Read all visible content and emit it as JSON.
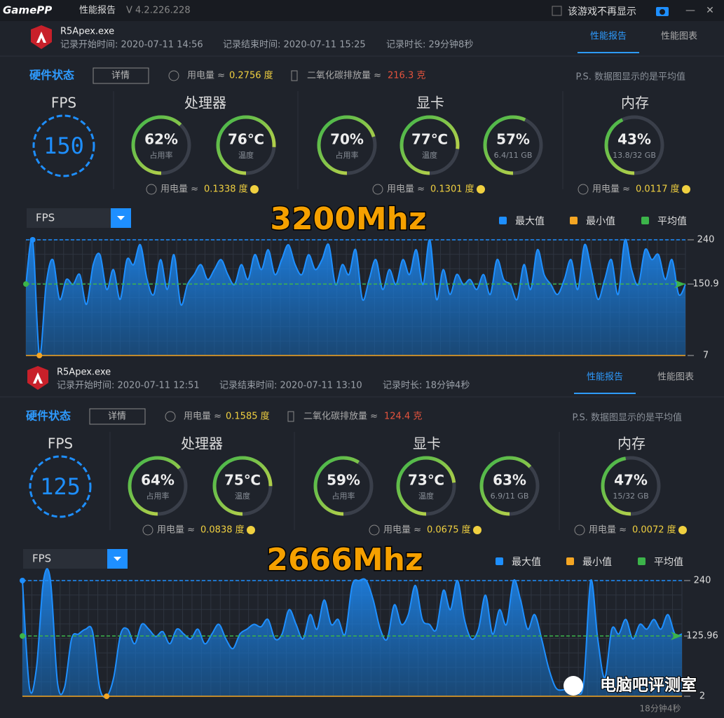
{
  "app": {
    "logo": "GamePP",
    "title": "性能报告",
    "version": "V 4.2.226.228",
    "checkbox": "该游戏不再显示",
    "minimize": "—",
    "close": "✕"
  },
  "panels": [
    {
      "exe": "R5Apex.exe",
      "start": "记录开始时间: 2020-07-11 14:56",
      "end": "记录结束时间: 2020-07-11 15:25",
      "duration": "记录时长: 29分钟8秒",
      "tabs": [
        "性能报告",
        "性能图表"
      ],
      "hw_title": "硬件状态",
      "detail": "详情",
      "power": "用电量 ≈",
      "power_value": "0.2756 度",
      "co2": "二氧化碳排放量 ≈",
      "co2_value": "216.3 克",
      "note": "P.S. 数据图显示的是平均值",
      "fps_label": "FPS",
      "fps": 150,
      "groups": [
        {
          "title": "处理器",
          "gauges": [
            {
              "value": 62,
              "label": "62%",
              "sub": "占用率"
            },
            {
              "value": 76,
              "label": "76℃",
              "sub": "温度"
            }
          ],
          "power": "用电量 ≈",
          "power_value": "0.1338 度"
        },
        {
          "title": "显卡",
          "gauges": [
            {
              "value": 70,
              "label": "70%",
              "sub": "占用率"
            },
            {
              "value": 77,
              "label": "77℃",
              "sub": "温度"
            },
            {
              "value": 57,
              "label": "57%",
              "sub": "6.4/11 GB"
            }
          ],
          "power": "用电量 ≈",
          "power_value": "0.1301 度"
        },
        {
          "title": "内存",
          "gauges": [
            {
              "value": 43,
              "label": "43%",
              "sub": "13.8/32 GB"
            }
          ],
          "power": "用电量 ≈",
          "power_value": "0.0117 度"
        }
      ],
      "chart": {
        "type": "area",
        "dropdown": "FPS",
        "overlay": "3200Mhz",
        "legend": [
          {
            "name": "最大值",
            "color": "#1e8fff"
          },
          {
            "name": "最小值",
            "color": "#f5a623"
          },
          {
            "name": "平均值",
            "color": "#3cb44a"
          }
        ],
        "ylim": [
          7,
          240
        ],
        "yticks": [
          7,
          150.9,
          240
        ],
        "color": "#1e8fff",
        "values": [
          150,
          240,
          7,
          150,
          200,
          120,
          160,
          150,
          170,
          110,
          190,
          210,
          140,
          180,
          120,
          200,
          190,
          230,
          160,
          130,
          200,
          140,
          210,
          110,
          150,
          170,
          190,
          160,
          180,
          200,
          170,
          150,
          190,
          160,
          210,
          180,
          220,
          170,
          200,
          230,
          190,
          170,
          210,
          180,
          200,
          230,
          150,
          190,
          170,
          220,
          120,
          160,
          200,
          140,
          180,
          150,
          200,
          170,
          220,
          150,
          240,
          120,
          180,
          130,
          170,
          150,
          160,
          140,
          170,
          130,
          200,
          160,
          150,
          120,
          190,
          140,
          220,
          170,
          150,
          130,
          160,
          200,
          140,
          230,
          180,
          120,
          160,
          200,
          130,
          240,
          180,
          150,
          220,
          200,
          210,
          160,
          200,
          130,
          150
        ]
      }
    },
    {
      "exe": "R5Apex.exe",
      "start": "记录开始时间: 2020-07-11 12:51",
      "end": "记录结束时间: 2020-07-11 13:10",
      "duration": "记录时长: 18分钟4秒",
      "tabs": [
        "性能报告",
        "性能图表"
      ],
      "hw_title": "硬件状态",
      "detail": "详情",
      "power": "用电量 ≈",
      "power_value": "0.1585 度",
      "co2": "二氧化碳排放量 ≈",
      "co2_value": "124.4 克",
      "note": "P.S. 数据图显示的是平均值",
      "fps_label": "FPS",
      "fps": 125,
      "groups": [
        {
          "title": "处理器",
          "gauges": [
            {
              "value": 64,
              "label": "64%",
              "sub": "占用率"
            },
            {
              "value": 75,
              "label": "75℃",
              "sub": "温度"
            }
          ],
          "power": "用电量 ≈",
          "power_value": "0.0838 度"
        },
        {
          "title": "显卡",
          "gauges": [
            {
              "value": 59,
              "label": "59%",
              "sub": "占用率"
            },
            {
              "value": 73,
              "label": "73℃",
              "sub": "温度"
            },
            {
              "value": 63,
              "label": "63%",
              "sub": "6.9/11 GB"
            }
          ],
          "power": "用电量 ≈",
          "power_value": "0.0675 度"
        },
        {
          "title": "内存",
          "gauges": [
            {
              "value": 47,
              "label": "47%",
              "sub": "15/32 GB"
            }
          ],
          "power": "用电量 ≈",
          "power_value": "0.0072 度"
        }
      ],
      "chart": {
        "type": "area",
        "dropdown": "FPS",
        "overlay": "2666Mhz",
        "legend": [
          {
            "name": "最大值",
            "color": "#1e8fff"
          },
          {
            "name": "最小值",
            "color": "#f5a623"
          },
          {
            "name": "平均值",
            "color": "#3cb44a"
          }
        ],
        "ylim": [
          2,
          240
        ],
        "yticks": [
          2,
          125.96,
          240
        ],
        "color": "#1e8fff",
        "values": [
          240,
          20,
          60,
          240,
          240,
          30,
          20,
          120,
          130,
          140,
          135,
          20,
          2,
          40,
          130,
          140,
          110,
          150,
          140,
          125,
          135,
          110,
          140,
          130,
          120,
          140,
          110,
          130,
          150,
          120,
          100,
          130,
          140,
          150,
          145,
          160,
          120,
          130,
          180,
          150,
          120,
          170,
          140,
          200,
          150,
          160,
          130,
          230,
          240,
          240,
          200,
          140,
          120,
          190,
          150,
          170,
          230,
          160,
          150,
          140,
          220,
          180,
          240,
          160,
          120,
          140,
          210,
          130,
          180,
          150,
          240,
          200,
          140,
          170,
          120,
          60,
          20,
          15,
          20,
          10,
          30,
          240,
          120,
          40,
          140,
          130,
          160,
          120,
          150,
          140,
          160,
          140,
          170,
          130,
          130
        ]
      }
    }
  ],
  "watermark": "电脑吧评测室",
  "footer": "18分钟4秒"
}
